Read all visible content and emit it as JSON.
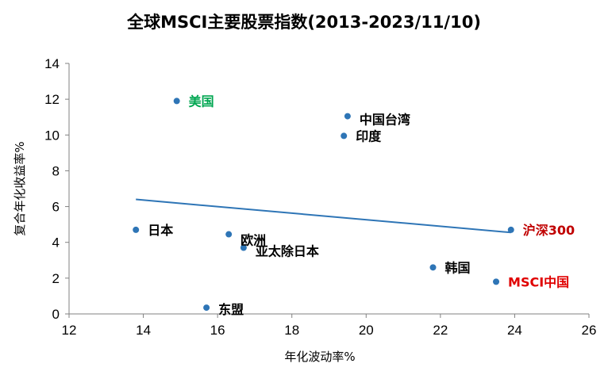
{
  "chart_data": {
    "type": "scatter",
    "title": "全球MSCI主要股票指数(2013-2023/11/10)",
    "xlabel": "年化波动率%",
    "ylabel": "复合年化收益率%",
    "xlim": [
      12,
      26
    ],
    "ylim": [
      0,
      14
    ],
    "x_ticks": [
      "12",
      "14",
      "16",
      "18",
      "20",
      "22",
      "24",
      "26"
    ],
    "y_ticks": [
      "0",
      "2",
      "4",
      "6",
      "8",
      "10",
      "12",
      "14"
    ],
    "grid": false,
    "legend": "none",
    "point_color": "#2e75b6",
    "trendline": {
      "x": [
        13.8,
        23.9
      ],
      "y": [
        6.4,
        4.55
      ],
      "color": "#2e75b6"
    },
    "points": [
      {
        "label": "美国",
        "x": 14.9,
        "y": 11.9,
        "label_color": "#00a651"
      },
      {
        "label": "中国台湾",
        "x": 19.5,
        "y": 11.05,
        "label_color": "#000000"
      },
      {
        "label": "印度",
        "x": 19.4,
        "y": 9.95,
        "label_color": "#000000"
      },
      {
        "label": "日本",
        "x": 13.8,
        "y": 4.7,
        "label_color": "#000000"
      },
      {
        "label": "欧洲",
        "x": 16.3,
        "y": 4.45,
        "label_color": "#000000"
      },
      {
        "label": "亚太除日本",
        "x": 16.7,
        "y": 3.7,
        "label_color": "#000000"
      },
      {
        "label": "沪深300",
        "x": 23.9,
        "y": 4.7,
        "label_color": "#c00000"
      },
      {
        "label": "韩国",
        "x": 21.8,
        "y": 2.6,
        "label_color": "#000000"
      },
      {
        "label": "MSCI中国",
        "x": 23.5,
        "y": 1.8,
        "label_color": "#e00000"
      },
      {
        "label": "东盟",
        "x": 15.7,
        "y": 0.35,
        "label_color": "#000000"
      }
    ]
  }
}
